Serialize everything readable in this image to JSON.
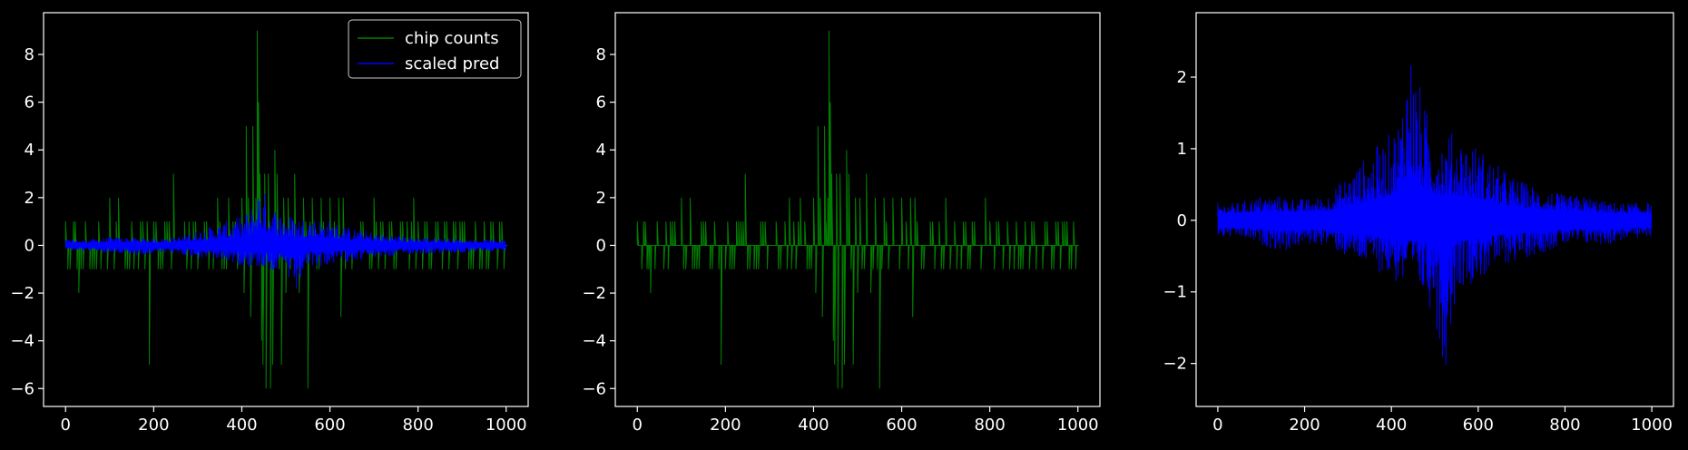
{
  "chart_data": [
    {
      "type": "line",
      "title": "",
      "xlabel": "",
      "ylabel": "",
      "xlim": [
        -50,
        1050
      ],
      "ylim": [
        -6.75,
        9.75
      ],
      "xticks": [
        0,
        200,
        400,
        600,
        800,
        1000
      ],
      "yticks": [
        -6,
        -4,
        -2,
        0,
        2,
        4,
        6,
        8
      ],
      "tick_labels_x": [
        "0",
        "200",
        "400",
        "600",
        "800",
        "1000"
      ],
      "tick_labels_y": [
        "−6",
        "−4",
        "−2",
        "0",
        "2",
        "4",
        "6",
        "8"
      ],
      "legend": {
        "position": "upper right",
        "entries": [
          "chip counts",
          "scaled pred"
        ]
      },
      "series": [
        {
          "name": "chip counts",
          "color": "#008000",
          "style": "spiky",
          "x": [
            0,
            10,
            18,
            30,
            45,
            60,
            75,
            90,
            100,
            110,
            120,
            135,
            150,
            165,
            175,
            190,
            205,
            220,
            235,
            245,
            260,
            275,
            290,
            305,
            315,
            330,
            345,
            360,
            370,
            380,
            390,
            400,
            405,
            410,
            415,
            420,
            425,
            428,
            432,
            435,
            438,
            441,
            445,
            448,
            452,
            455,
            460,
            465,
            470,
            475,
            480,
            490,
            495,
            500,
            505,
            510,
            520,
            530,
            540,
            550,
            560,
            570,
            580,
            590,
            600,
            610,
            620,
            625,
            630,
            640,
            650,
            660,
            670,
            680,
            690,
            700,
            710,
            720,
            730,
            740,
            750,
            760,
            770,
            780,
            790,
            800,
            810,
            820,
            830,
            840,
            850,
            860,
            870,
            880,
            890,
            900,
            910,
            920,
            930,
            940,
            950,
            960,
            970,
            980,
            990,
            1000
          ],
          "values": [
            1,
            -1,
            1,
            -2,
            1,
            -1,
            1,
            0,
            2,
            -1,
            2,
            -1,
            1,
            -1,
            1,
            -5,
            1,
            -1,
            1,
            3,
            0,
            -1,
            1,
            0,
            1,
            0,
            2,
            -1,
            2,
            1,
            -1,
            2,
            -2,
            5,
            2,
            -3,
            5,
            1,
            2,
            9,
            6,
            3,
            -4,
            -5,
            3,
            -6,
            3,
            -6,
            -5,
            4,
            3,
            -5,
            2,
            -2,
            2,
            -1,
            3,
            -2,
            2,
            -6,
            2,
            -1,
            2,
            0,
            2,
            1,
            2,
            -3,
            2,
            0,
            -1,
            0,
            1,
            0,
            -1,
            2,
            -1,
            1,
            0,
            1,
            -1,
            1,
            0,
            -1,
            2,
            1,
            -1,
            1,
            -1,
            1,
            0,
            1,
            -1,
            1,
            -1,
            1,
            0,
            -1,
            1,
            -1,
            1,
            -1,
            1,
            -1,
            1,
            0
          ]
        },
        {
          "name": "scaled pred",
          "color": "#0000ff",
          "style": "envelope",
          "x": [
            0,
            50,
            100,
            150,
            200,
            250,
            300,
            350,
            400,
            420,
            440,
            460,
            480,
            500,
            520,
            550,
            600,
            650,
            700,
            750,
            800,
            850,
            900,
            950,
            1000
          ],
          "upper": [
            0.2,
            0.2,
            0.3,
            0.3,
            0.25,
            0.3,
            0.6,
            0.9,
            1.2,
            1.5,
            2.6,
            2.0,
            1.5,
            1.3,
            1.2,
            1.2,
            1.0,
            0.7,
            0.5,
            0.4,
            0.3,
            0.3,
            0.2,
            0.2,
            0.2
          ],
          "lower": [
            -0.2,
            -0.2,
            -0.3,
            -0.4,
            -0.3,
            -0.3,
            -0.5,
            -0.6,
            -0.8,
            -0.9,
            -0.9,
            -1.0,
            -1.1,
            -1.3,
            -2.2,
            -0.9,
            -0.8,
            -0.6,
            -0.5,
            -0.4,
            -0.3,
            -0.3,
            -0.3,
            -0.2,
            -0.2
          ]
        }
      ]
    },
    {
      "type": "line",
      "title": "",
      "xlabel": "",
      "ylabel": "",
      "xlim": [
        -50,
        1050
      ],
      "ylim": [
        -6.75,
        9.75
      ],
      "xticks": [
        0,
        200,
        400,
        600,
        800,
        1000
      ],
      "yticks": [
        -6,
        -4,
        -2,
        0,
        2,
        4,
        6,
        8
      ],
      "tick_labels_x": [
        "0",
        "200",
        "400",
        "600",
        "800",
        "1000"
      ],
      "tick_labels_y": [
        "−6",
        "−4",
        "−2",
        "0",
        "2",
        "4",
        "6",
        "8"
      ],
      "series": [
        {
          "name": "chip counts",
          "color": "#008000",
          "style": "spiky",
          "x": [
            0,
            10,
            18,
            30,
            45,
            60,
            75,
            90,
            100,
            110,
            120,
            135,
            150,
            165,
            175,
            190,
            205,
            220,
            235,
            245,
            260,
            275,
            290,
            305,
            315,
            330,
            345,
            360,
            370,
            380,
            390,
            400,
            405,
            410,
            415,
            420,
            425,
            428,
            432,
            435,
            438,
            441,
            445,
            448,
            452,
            455,
            460,
            465,
            470,
            475,
            480,
            490,
            495,
            500,
            505,
            510,
            520,
            530,
            540,
            550,
            560,
            570,
            580,
            590,
            600,
            610,
            620,
            625,
            630,
            640,
            650,
            660,
            670,
            680,
            690,
            700,
            710,
            720,
            730,
            740,
            750,
            760,
            770,
            780,
            790,
            800,
            810,
            820,
            830,
            840,
            850,
            860,
            870,
            880,
            890,
            900,
            910,
            920,
            930,
            940,
            950,
            960,
            970,
            980,
            990,
            1000
          ],
          "values": [
            1,
            -1,
            1,
            -2,
            1,
            -1,
            1,
            0,
            2,
            -1,
            2,
            -1,
            1,
            -1,
            1,
            -5,
            1,
            -1,
            1,
            3,
            0,
            -1,
            1,
            0,
            1,
            0,
            2,
            -1,
            2,
            1,
            -1,
            2,
            -2,
            5,
            2,
            -3,
            5,
            1,
            2,
            9,
            6,
            3,
            -4,
            -5,
            3,
            -6,
            3,
            -6,
            -5,
            4,
            3,
            -5,
            2,
            -2,
            2,
            -1,
            3,
            -2,
            2,
            -6,
            2,
            -1,
            2,
            0,
            2,
            1,
            2,
            -3,
            2,
            0,
            -1,
            0,
            1,
            0,
            -1,
            2,
            -1,
            1,
            0,
            1,
            -1,
            1,
            0,
            -1,
            2,
            1,
            -1,
            1,
            -1,
            1,
            0,
            1,
            -1,
            1,
            -1,
            1,
            0,
            -1,
            1,
            -1,
            1,
            -1,
            1,
            -1,
            1,
            0
          ]
        }
      ]
    },
    {
      "type": "line",
      "title": "",
      "xlabel": "",
      "ylabel": "",
      "xlim": [
        -50,
        1050
      ],
      "ylim": [
        -2.6,
        2.9
      ],
      "xticks": [
        0,
        200,
        400,
        600,
        800,
        1000
      ],
      "yticks": [
        -2,
        -1,
        0,
        1,
        2
      ],
      "tick_labels_x": [
        "0",
        "200",
        "400",
        "600",
        "800",
        "1000"
      ],
      "tick_labels_y": [
        "−2",
        "−1",
        "0",
        "1",
        "2"
      ],
      "series": [
        {
          "name": "scaled pred",
          "color": "#0000ff",
          "style": "envelope",
          "x": [
            0,
            50,
            100,
            150,
            200,
            250,
            300,
            350,
            400,
            420,
            440,
            460,
            480,
            500,
            520,
            550,
            600,
            650,
            700,
            750,
            800,
            850,
            900,
            950,
            1000
          ],
          "upper": [
            0.2,
            0.2,
            0.3,
            0.3,
            0.25,
            0.3,
            0.6,
            0.9,
            1.2,
            1.5,
            2.6,
            2.0,
            1.5,
            1.3,
            1.2,
            1.2,
            1.0,
            0.7,
            0.5,
            0.4,
            0.3,
            0.3,
            0.2,
            0.2,
            0.2
          ],
          "lower": [
            -0.2,
            -0.2,
            -0.3,
            -0.4,
            -0.3,
            -0.3,
            -0.5,
            -0.6,
            -0.8,
            -0.9,
            -0.9,
            -1.0,
            -1.1,
            -1.3,
            -2.2,
            -0.9,
            -0.8,
            -0.6,
            -0.5,
            -0.4,
            -0.3,
            -0.3,
            -0.3,
            -0.2,
            -0.2
          ]
        }
      ]
    }
  ]
}
